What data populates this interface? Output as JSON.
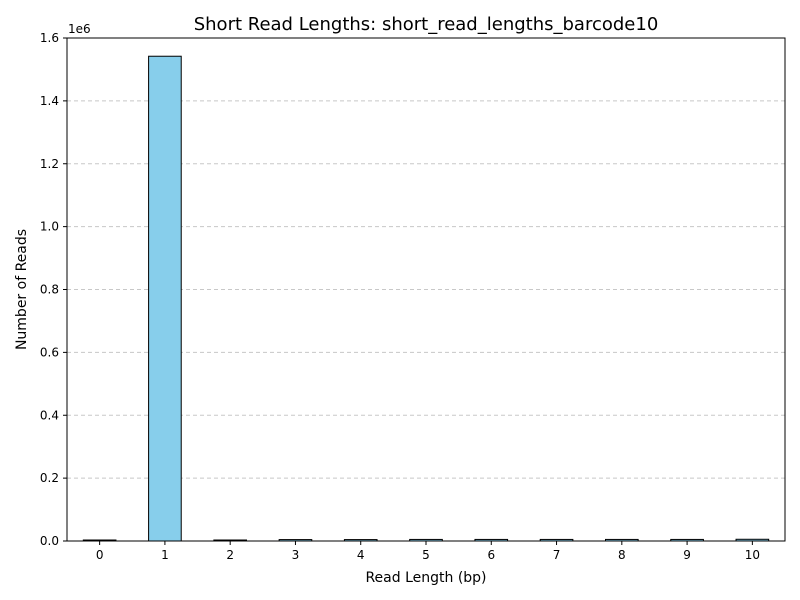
{
  "chart_data": {
    "type": "bar",
    "title": "Short Read Lengths: short_read_lengths_barcode10",
    "xlabel": "Read Length (bp)",
    "ylabel": "Number of Reads",
    "y_offset_label": "1e6",
    "categories": [
      "0",
      "1",
      "2",
      "3",
      "4",
      "5",
      "6",
      "7",
      "8",
      "9",
      "10"
    ],
    "values": [
      0,
      1542000,
      3000,
      4500,
      4500,
      5000,
      5000,
      5000,
      5000,
      5000,
      5500
    ],
    "ylim": [
      0,
      1600000
    ],
    "yticks": [
      0,
      200000,
      400000,
      600000,
      800000,
      1000000,
      1200000,
      1400000,
      1600000
    ],
    "ytick_labels": [
      "0.0",
      "0.2",
      "0.4",
      "0.6",
      "0.8",
      "1.0",
      "1.2",
      "1.4",
      "1.6"
    ],
    "grid": "y-dashed",
    "bar_color": "#87ceeb",
    "edge_color": "#000000",
    "grid_color": "#c8c8c8"
  }
}
